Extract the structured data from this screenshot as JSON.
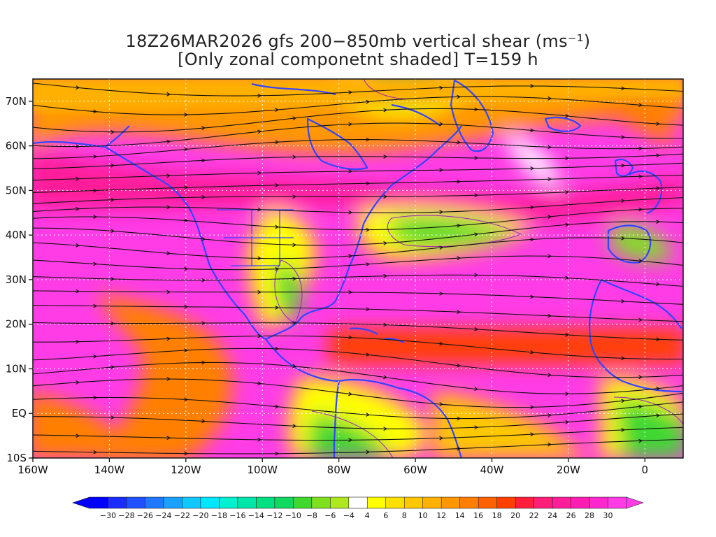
{
  "title": {
    "line1": "18Z26MAR2026 gfs 200−850mb vertical shear (ms⁻¹)",
    "line2": "[Only zonal componetnt shaded] T=159 h"
  },
  "map": {
    "lon_range": [
      -160,
      10
    ],
    "lat_range": [
      -10,
      75
    ],
    "lon_ticks": [
      {
        "value": -160,
        "label": "160W"
      },
      {
        "value": -140,
        "label": "140W"
      },
      {
        "value": -120,
        "label": "120W"
      },
      {
        "value": -100,
        "label": "100W"
      },
      {
        "value": -80,
        "label": "80W"
      },
      {
        "value": -60,
        "label": "60W"
      },
      {
        "value": -40,
        "label": "40W"
      },
      {
        "value": -20,
        "label": "20W"
      },
      {
        "value": 0,
        "label": "0"
      }
    ],
    "lat_ticks": [
      {
        "value": 70,
        "label": "70N"
      },
      {
        "value": 60,
        "label": "60N"
      },
      {
        "value": 50,
        "label": "50N"
      },
      {
        "value": 40,
        "label": "40N"
      },
      {
        "value": 30,
        "label": "30N"
      },
      {
        "value": 20,
        "label": "20N"
      },
      {
        "value": 10,
        "label": "10N"
      },
      {
        "value": 0,
        "label": "EQ"
      },
      {
        "value": -10,
        "label": "10S"
      }
    ],
    "coast_color": "#3344ff",
    "streamline_color": "#111111",
    "grid_color": "#ffffff",
    "contour_color": "#a020c0"
  },
  "colorbar": {
    "labels": [
      "−30",
      "−28",
      "−26",
      "−24",
      "−22",
      "−20",
      "−18",
      "−16",
      "−14",
      "−12",
      "−10",
      "−8",
      "−6",
      "−4",
      "4",
      "6",
      "8",
      "10",
      "12",
      "14",
      "16",
      "18",
      "20",
      "22",
      "24",
      "26",
      "28",
      "30"
    ],
    "colors": [
      "#0000ff",
      "#1a2cff",
      "#2050ff",
      "#2078ff",
      "#1aa0ff",
      "#10c8ff",
      "#00e6ff",
      "#00f0d0",
      "#00e6a8",
      "#00e080",
      "#10d860",
      "#40d830",
      "#80e020",
      "#b0e820",
      "#ffffff",
      "#ffff00",
      "#ffe000",
      "#ffc800",
      "#ffb000",
      "#ff9800",
      "#ff8000",
      "#ff6000",
      "#ff4000",
      "#ff1e3c",
      "#ff1e78",
      "#ff1e9a",
      "#ff1eb4",
      "#ff28d0",
      "#ff3ce6"
    ]
  }
}
